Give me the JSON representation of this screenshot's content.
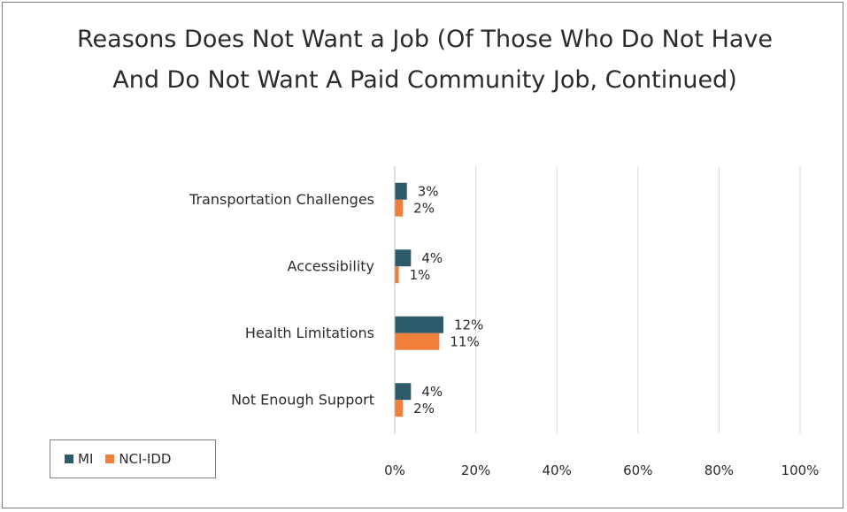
{
  "chart_data": {
    "type": "bar",
    "orientation": "horizontal",
    "title": "Reasons Does Not Want a Job (Of Those Who Do Not Have And Do Not Want A Paid Community Job, Continued)",
    "categories": [
      "Transportation Challenges",
      "Accessibility",
      "Health Limitations",
      "Not Enough Support"
    ],
    "series": [
      {
        "name": "MI",
        "values": [
          3,
          4,
          12,
          4
        ],
        "labels": [
          "3%",
          "4%",
          "12%",
          "4%"
        ],
        "color": "#2e5b6b"
      },
      {
        "name": "NCI-IDD",
        "values": [
          2,
          1,
          11,
          2
        ],
        "labels": [
          "2%",
          "1%",
          "11%",
          "2%"
        ],
        "color": "#f07f3c"
      }
    ],
    "xlim": [
      0,
      100
    ],
    "xticks": [
      "0%",
      "20%",
      "40%",
      "60%",
      "80%",
      "100%"
    ],
    "grid": "vertical",
    "legend": "bottom-left"
  }
}
